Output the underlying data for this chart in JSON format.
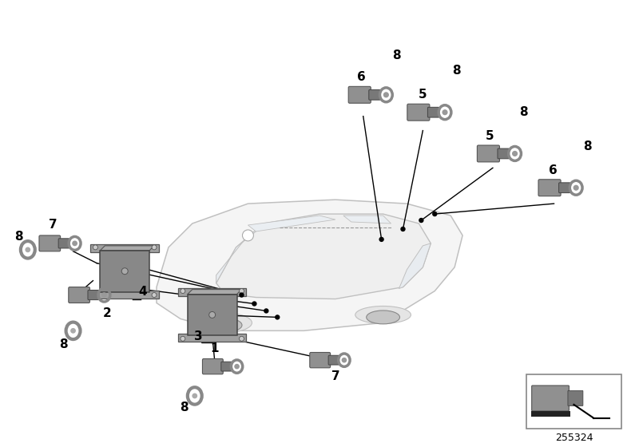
{
  "background_color": "#ffffff",
  "part_number": "255324",
  "sensor_color_dark": "#808080",
  "sensor_color_mid": "#909090",
  "sensor_color_light": "#b0b0b0",
  "line_color": "#000000",
  "car_edge_color": "#c0c0c0",
  "car_fill_color": "#f5f5f5",
  "label_fontsize": 11,
  "label_fontweight": "bold"
}
